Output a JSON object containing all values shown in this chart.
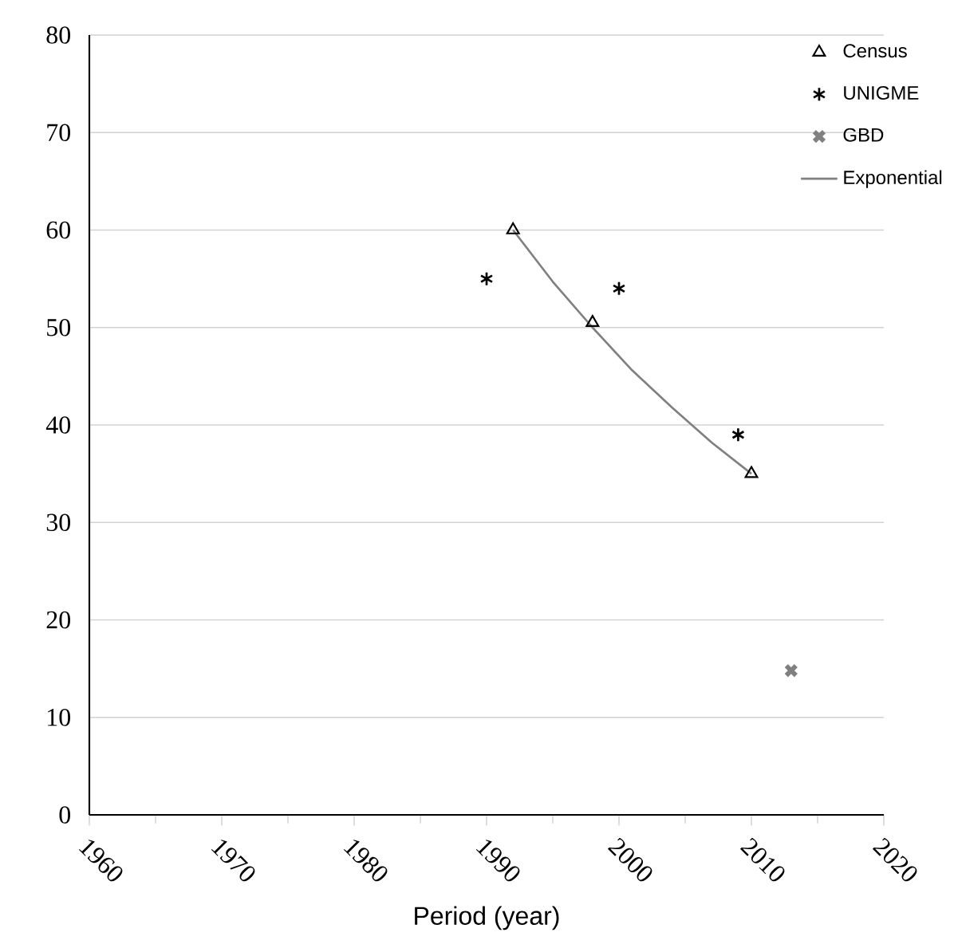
{
  "chart_data": {
    "type": "scatter",
    "xlabel": "Period (year)",
    "xlim": [
      1960,
      2020
    ],
    "xticks": [
      1960,
      1970,
      1980,
      1990,
      2000,
      2010,
      2020
    ],
    "ylim": [
      0,
      80
    ],
    "yticks": [
      0,
      10,
      20,
      30,
      40,
      50,
      60,
      70,
      80
    ],
    "grid": "y",
    "legend": "top right",
    "series": [
      {
        "name": "Census",
        "marker": "triangle",
        "color": "#000000",
        "x": [
          1992,
          1998,
          2010
        ],
        "values": [
          60,
          50.5,
          35
        ]
      },
      {
        "name": "UNIGME",
        "color": "#000000",
        "x": [
          1990,
          2000,
          2009
        ],
        "values": [
          55,
          54,
          39
        ]
      },
      {
        "name": "GBD",
        "marker": "cross",
        "color": "#808080",
        "x": [
          2013
        ],
        "values": [
          14.8
        ]
      },
      {
        "name": "Exponential",
        "type": "line",
        "marker": "none",
        "color": "#808080",
        "x": [
          1992,
          1995,
          1998,
          2001,
          2004,
          2007,
          2010
        ],
        "values": [
          60,
          54.7,
          50,
          45.6,
          41.8,
          38.2,
          35
        ]
      }
    ]
  }
}
